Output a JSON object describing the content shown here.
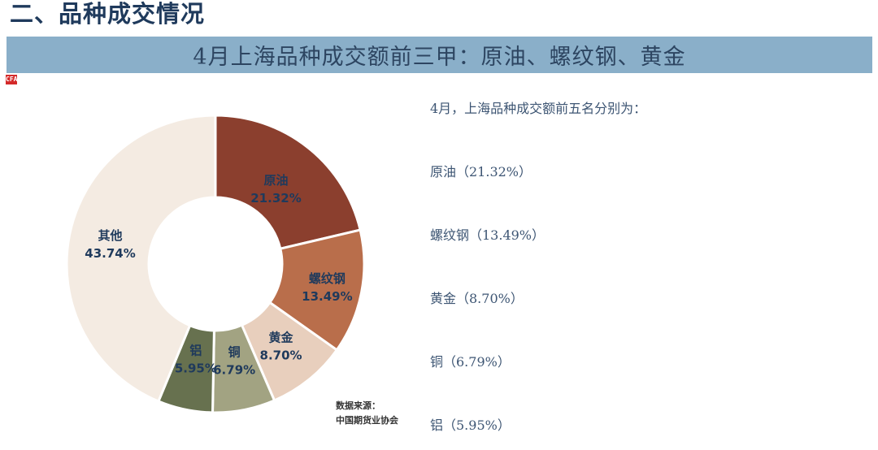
{
  "section_title": "二、品种成交情况",
  "banner": {
    "title": "4月上海品种成交额前三甲：原油、螺纹钢、黄金"
  },
  "logo": {
    "text": "CFA",
    "icon": "cfa-logo-icon"
  },
  "source": {
    "line1": "数据来源：",
    "line2": "中国期货业协会"
  },
  "summary": {
    "intro": "4月，上海品种成交额前五名分别为：",
    "items": [
      {
        "text": "原油（21.32%）"
      },
      {
        "text": "螺纹钢（13.49%）"
      },
      {
        "text": "黄金（8.70%）"
      },
      {
        "text": "铜（6.79%）"
      },
      {
        "text": "铝（5.95%）"
      }
    ]
  },
  "chart_data": {
    "type": "pie",
    "subtype": "donut",
    "title": "4月上海品种成交额占比",
    "categories": [
      "原油",
      "螺纹钢",
      "黄金",
      "铜",
      "铝",
      "其他"
    ],
    "values": [
      21.32,
      13.49,
      8.7,
      6.79,
      5.95,
      43.74
    ],
    "unit": "%",
    "labels": [
      {
        "name": "原油",
        "value": "21.32%"
      },
      {
        "name": "螺纹钢",
        "value": "13.49%"
      },
      {
        "name": "黄金",
        "value": "8.70%"
      },
      {
        "name": "铜",
        "value": "6.79%"
      },
      {
        "name": "铝",
        "value": "5.95%"
      },
      {
        "name": "其他",
        "value": "43.74%"
      }
    ],
    "colors": [
      "#8b3f2e",
      "#b96e4b",
      "#e8cfbd",
      "#a2a382",
      "#67714f",
      "#f4ebe2"
    ],
    "start_angle": "12 o'clock, clockwise",
    "legend": "none (data labels on slices)"
  }
}
